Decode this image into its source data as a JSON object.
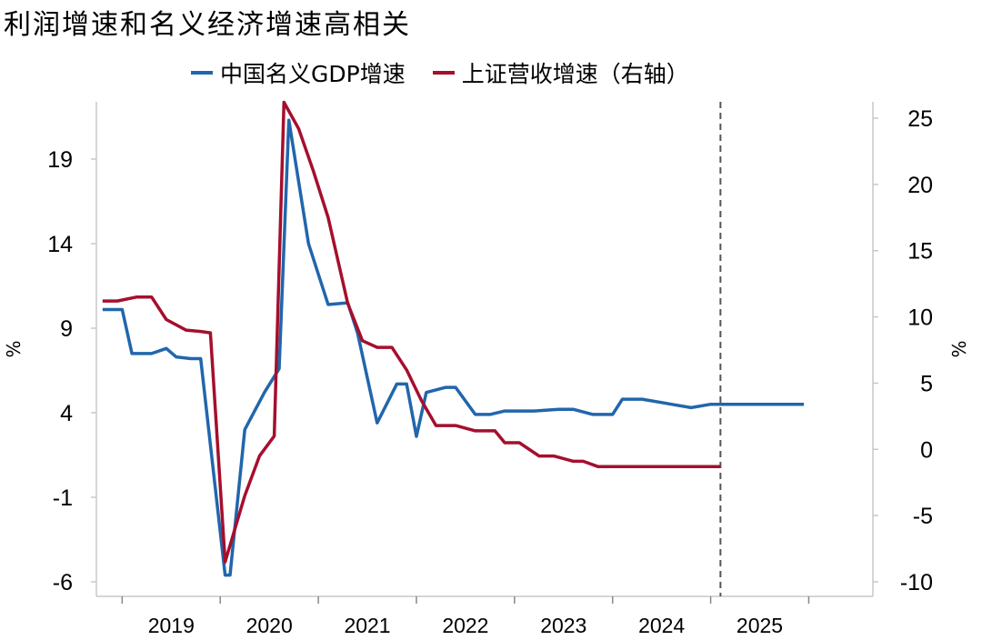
{
  "title": "利润增速和名义经济增速高相关",
  "colors": {
    "gdp": "#2166ac",
    "revenue": "#a50f2d",
    "axis": "#c8c8c8",
    "divider": "#555555"
  },
  "chart_data": {
    "type": "line",
    "title": "利润增速和名义经济增速高相关",
    "left_axis": {
      "label": "%",
      "ticks": [
        19,
        14,
        9,
        4,
        -1,
        -6
      ],
      "range": [
        -7,
        23.3
      ]
    },
    "right_axis": {
      "label": "%",
      "ticks": [
        25,
        20,
        15,
        10,
        5,
        0,
        -5,
        -10
      ],
      "range": [
        -10.6,
        26.2
      ]
    },
    "x_labels": [
      "2019",
      "2020",
      "2021",
      "2022",
      "2023",
      "2024",
      "2025"
    ],
    "x_ticks": [
      2018.5,
      2019.5,
      2020.5,
      2021.5,
      2022.5,
      2023.5,
      2024.5,
      2025.5
    ],
    "x_range": [
      2018.2,
      2025.95
    ],
    "forecast_divider_x": 2024.6,
    "series": [
      {
        "name": "中国名义GDP增速",
        "axis": "left",
        "color": "#2166ac",
        "x": [
          2018.3,
          2018.5,
          2018.6,
          2018.8,
          2018.95,
          2019.05,
          2019.2,
          2019.3,
          2019.55,
          2019.6,
          2019.75,
          2019.95,
          2020.1,
          2020.2,
          2020.4,
          2020.6,
          2020.8,
          2020.9,
          2021.1,
          2021.3,
          2021.4,
          2021.5,
          2021.6,
          2021.8,
          2021.9,
          2022.1,
          2022.25,
          2022.4,
          2022.55,
          2022.7,
          2022.95,
          2023.1,
          2023.3,
          2023.5,
          2023.6,
          2023.8,
          2024.0,
          2024.1,
          2024.3,
          2024.5,
          2024.7,
          2024.9,
          2025.1,
          2025.3,
          2025.45
        ],
        "values": [
          10.1,
          10.1,
          7.5,
          7.5,
          7.8,
          7.3,
          7.2,
          7.2,
          -5.6,
          -5.6,
          3.0,
          5.2,
          6.6,
          21.3,
          14.0,
          10.4,
          10.5,
          8.7,
          3.4,
          5.7,
          5.7,
          2.6,
          5.2,
          5.5,
          5.5,
          3.9,
          3.9,
          4.1,
          4.1,
          4.1,
          4.2,
          4.2,
          3.9,
          3.9,
          4.8,
          4.8,
          4.6,
          4.5,
          4.3,
          4.5,
          4.5,
          4.5,
          4.5,
          4.5,
          4.5
        ]
      },
      {
        "name": "上证营收增速（右轴）",
        "axis": "right",
        "color": "#a50f2d",
        "x": [
          2018.3,
          2018.45,
          2018.65,
          2018.8,
          2018.95,
          2019.15,
          2019.3,
          2019.4,
          2019.55,
          2019.75,
          2019.9,
          2020.05,
          2020.15,
          2020.3,
          2020.45,
          2020.6,
          2020.8,
          2020.95,
          2021.1,
          2021.25,
          2021.4,
          2021.55,
          2021.7,
          2021.9,
          2022.1,
          2022.3,
          2022.4,
          2022.55,
          2022.75,
          2022.9,
          2023.1,
          2023.2,
          2023.35,
          2023.55,
          2023.7,
          2023.9,
          2024.05,
          2024.1,
          2024.3,
          2024.45,
          2024.6
        ],
        "values": [
          11.2,
          11.2,
          11.5,
          11.5,
          9.8,
          9.0,
          8.9,
          8.8,
          -8.5,
          -3.5,
          -0.5,
          1.0,
          26.2,
          24.2,
          21.0,
          17.5,
          11.0,
          8.2,
          7.7,
          7.7,
          6.0,
          3.7,
          1.8,
          1.8,
          1.4,
          1.4,
          0.5,
          0.5,
          -0.5,
          -0.5,
          -0.9,
          -0.9,
          -1.3,
          -1.3,
          -1.3,
          -1.3,
          -1.3,
          -1.3,
          -1.3,
          -1.3,
          -1.3
        ]
      }
    ]
  },
  "legend": [
    {
      "label": "中国名义GDP增速",
      "color": "#2166ac"
    },
    {
      "label": "上证营收增速（右轴）",
      "color": "#a50f2d"
    }
  ]
}
